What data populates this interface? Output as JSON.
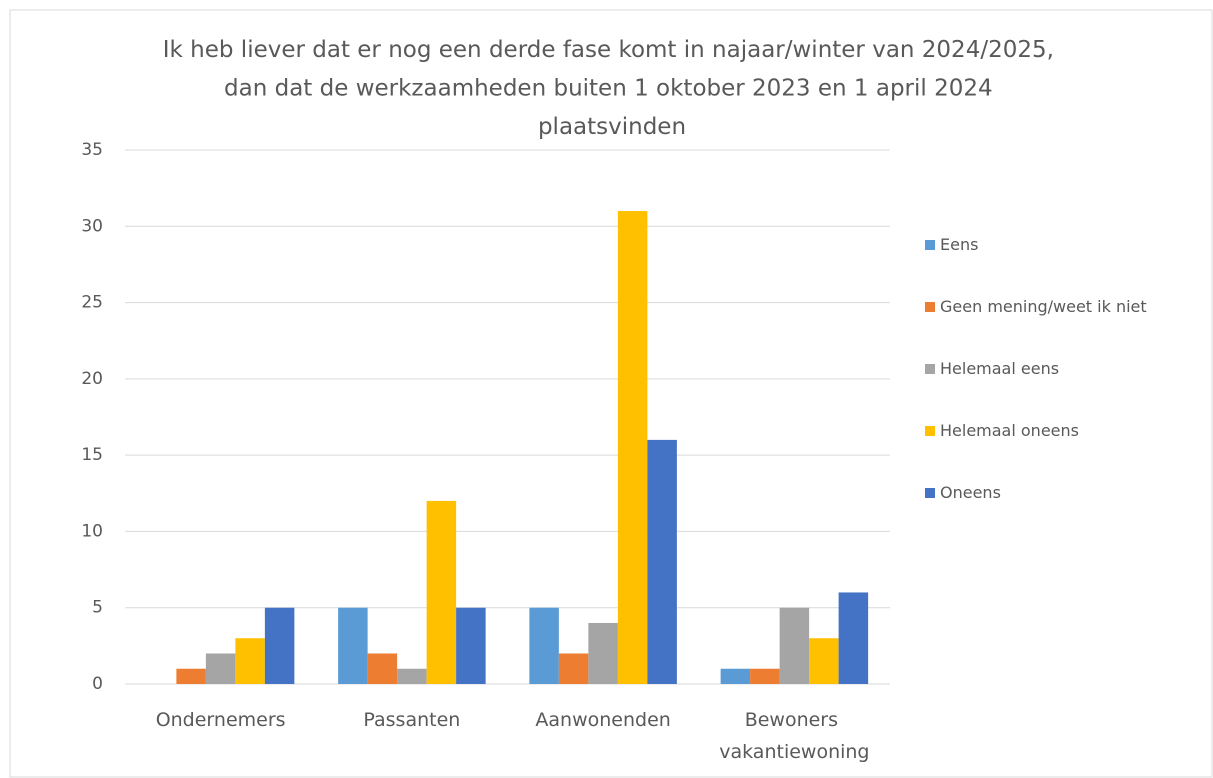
{
  "chart_data": {
    "type": "bar",
    "title": "Ik heb liever dat er nog een derde fase komt in najaar/winter van 2024/2025, dan dat de werkzaamheden buiten 1 oktober 2023 en 1 april 2024 plaatsvinden",
    "categories": [
      "Ondernemers",
      "Passanten",
      "Aanwonenden",
      "Bewoners vakantiewoning"
    ],
    "series": [
      {
        "name": "Eens",
        "color": "#5b9bd5",
        "values": [
          0,
          5,
          5,
          1
        ]
      },
      {
        "name": "Geen mening/weet ik niet",
        "color": "#ed7d31",
        "values": [
          1,
          2,
          2,
          1
        ]
      },
      {
        "name": "Helemaal eens",
        "color": "#a5a5a5",
        "values": [
          2,
          1,
          4,
          5
        ]
      },
      {
        "name": "Helemaal oneens",
        "color": "#ffc000",
        "values": [
          3,
          12,
          31,
          3
        ]
      },
      {
        "name": "Oneens",
        "color": "#4472c4",
        "values": [
          5,
          5,
          16,
          6
        ]
      }
    ],
    "ylim": [
      0,
      35
    ],
    "yticks": [
      0,
      5,
      10,
      15,
      20,
      25,
      30,
      35
    ],
    "grid": true,
    "legend": "right"
  }
}
